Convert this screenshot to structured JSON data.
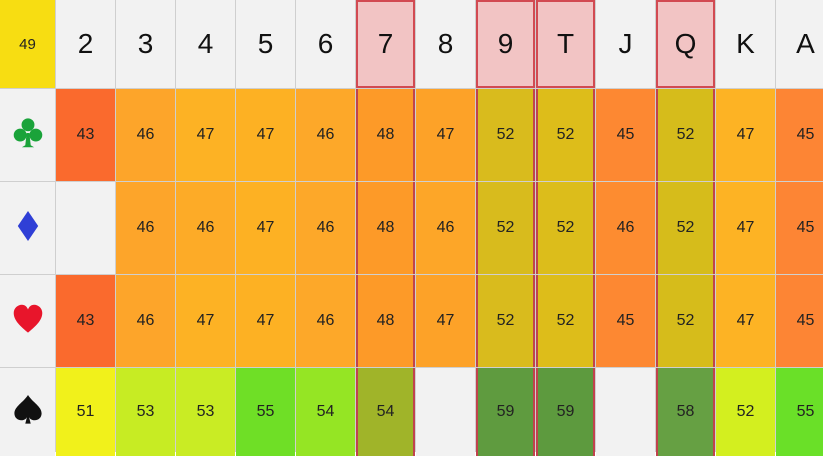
{
  "corner_value": "49",
  "ranks": [
    {
      "label": "2",
      "highlight": false
    },
    {
      "label": "3",
      "highlight": false
    },
    {
      "label": "4",
      "highlight": false
    },
    {
      "label": "5",
      "highlight": false
    },
    {
      "label": "6",
      "highlight": false
    },
    {
      "label": "7",
      "highlight": true
    },
    {
      "label": "8",
      "highlight": false
    },
    {
      "label": "9",
      "highlight": true
    },
    {
      "label": "T",
      "highlight": true
    },
    {
      "label": "J",
      "highlight": false
    },
    {
      "label": "Q",
      "highlight": true
    },
    {
      "label": "K",
      "highlight": false
    },
    {
      "label": "A",
      "highlight": false
    }
  ],
  "suits": [
    {
      "name": "clubs",
      "icon": "club-icon",
      "color": "#1aa33a"
    },
    {
      "name": "diamonds",
      "icon": "diamond-icon",
      "color": "#2f3fd6"
    },
    {
      "name": "hearts",
      "icon": "heart-icon",
      "color": "#e8152b"
    },
    {
      "name": "spades",
      "icon": "spade-icon",
      "color": "#111111"
    }
  ],
  "rows": [
    {
      "suit": "clubs",
      "values": [
        "43",
        "46",
        "47",
        "47",
        "46",
        "48",
        "47",
        "52",
        "52",
        "45",
        "52",
        "47",
        "45"
      ]
    },
    {
      "suit": "diamonds",
      "values": [
        "",
        "46",
        "46",
        "47",
        "46",
        "48",
        "46",
        "52",
        "52",
        "46",
        "52",
        "47",
        "45"
      ]
    },
    {
      "suit": "hearts",
      "values": [
        "43",
        "46",
        "47",
        "47",
        "46",
        "48",
        "47",
        "52",
        "52",
        "45",
        "52",
        "47",
        "45"
      ]
    },
    {
      "suit": "spades",
      "values": [
        "51",
        "53",
        "53",
        "55",
        "54",
        "54",
        "",
        "59",
        "59",
        "",
        "58",
        "52",
        "55"
      ]
    }
  ],
  "colors": {
    "corner": "#f7dd12",
    "highlight_border": "#d24a52",
    "highlight_header": "#f2c4c4"
  },
  "cell_colors": [
    [
      "#fa6a2d",
      "#fda52a",
      "#fdb224",
      "#fdb123",
      "#fda829",
      "#fd9a28",
      "#fda228",
      "#d9bb1d",
      "#ddbd1a",
      "#fd8832",
      "#d6bc1b",
      "#fdb324",
      "#fd8534"
    ],
    [
      null,
      "#fda52a",
      "#fdab27",
      "#fdb123",
      "#fda829",
      "#fd9a28",
      "#fda628",
      "#d8bb1d",
      "#dcbd1b",
      "#fd8c30",
      "#d6bc1b",
      "#fdb324",
      "#fd8534"
    ],
    [
      "#fa6a2d",
      "#fda52a",
      "#fdb224",
      "#fdb123",
      "#fda829",
      "#fd9a28",
      "#fda228",
      "#d9bb1d",
      "#ddbd1a",
      "#fd8832",
      "#d6bc1b",
      "#fdb324",
      "#fd8534"
    ],
    [
      "#f1f11b",
      "#c7ec23",
      "#c9ec24",
      "#6fdf26",
      "#95e524",
      "#a0b429",
      null,
      "#5f9b3f",
      "#5d9a3e",
      null,
      "#66a043",
      "#d3ef1f",
      "#6ae028"
    ]
  ]
}
